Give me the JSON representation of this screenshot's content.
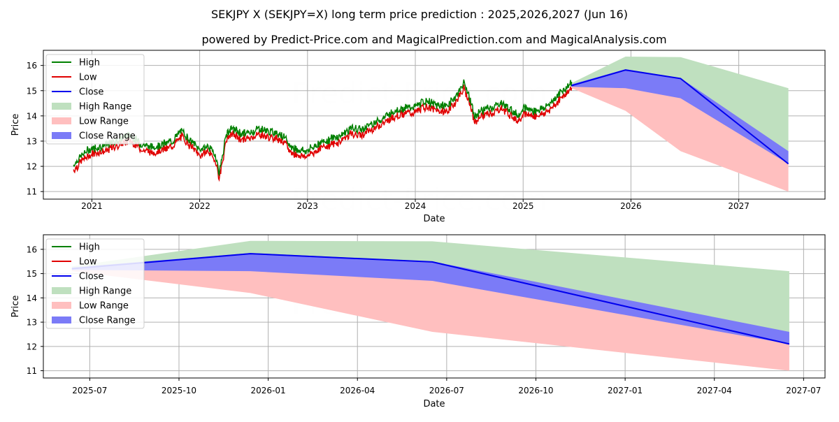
{
  "header": {
    "title": "SEKJPY X (SEKJPY=X) long term price prediction : 2025,2026,2027 (Jun 16)",
    "subtitle": "powered by Predict-Price.com and MagicalPrediction.com and MagicalAnalysis.com"
  },
  "watermark": "Predict-Price.com",
  "colors": {
    "high": "#008000",
    "low": "#e00000",
    "close": "#0000ee",
    "high_range": "#bfe0bf",
    "low_range": "#ffbfbf",
    "close_range": "#7b7bf7"
  },
  "legend": {
    "entries": [
      {
        "label": "High",
        "kind": "line",
        "color": "#008000"
      },
      {
        "label": "Low",
        "kind": "line",
        "color": "#e00000"
      },
      {
        "label": "Close",
        "kind": "line",
        "color": "#0000ee"
      },
      {
        "label": "High Range",
        "kind": "patch",
        "color": "#bfe0bf"
      },
      {
        "label": "Low Range",
        "kind": "patch",
        "color": "#ffbfbf"
      },
      {
        "label": "Close Range",
        "kind": "patch",
        "color": "#7b7bf7"
      }
    ]
  },
  "chart_data": [
    {
      "type": "line",
      "title": "",
      "xlabel": "Date",
      "ylabel": "Price",
      "xlim": [
        2020.55,
        2027.8
      ],
      "ylim": [
        10.7,
        16.6
      ],
      "legend_position": "top-left",
      "grid": true,
      "x_ticks": [
        {
          "value": 2021,
          "label": "2021"
        },
        {
          "value": 2022,
          "label": "2022"
        },
        {
          "value": 2023,
          "label": "2023"
        },
        {
          "value": 2024,
          "label": "2024"
        },
        {
          "value": 2025,
          "label": "2025"
        },
        {
          "value": 2026,
          "label": "2026"
        },
        {
          "value": 2027,
          "label": "2027"
        }
      ],
      "y_ticks": [
        11,
        12,
        13,
        14,
        15,
        16
      ],
      "history": {
        "x": [
          2020.83,
          2020.9,
          2020.97,
          2021.05,
          2021.15,
          2021.25,
          2021.35,
          2021.45,
          2021.55,
          2021.65,
          2021.75,
          2021.83,
          2021.92,
          2022.0,
          2022.08,
          2022.15,
          2022.18,
          2022.25,
          2022.3,
          2022.38,
          2022.46,
          2022.55,
          2022.65,
          2022.75,
          2022.85,
          2022.92,
          2023.0,
          2023.1,
          2023.2,
          2023.3,
          2023.4,
          2023.5,
          2023.6,
          2023.7,
          2023.8,
          2023.9,
          2024.0,
          2024.1,
          2024.2,
          2024.3,
          2024.38,
          2024.45,
          2024.5,
          2024.55,
          2024.6,
          2024.7,
          2024.8,
          2024.9,
          2024.95,
          2025.0,
          2025.1,
          2025.2,
          2025.3,
          2025.38,
          2025.45
        ],
        "close": [
          11.95,
          12.3,
          12.55,
          12.65,
          12.75,
          12.95,
          13.15,
          12.8,
          12.65,
          12.75,
          12.9,
          13.3,
          12.9,
          12.55,
          12.7,
          12.3,
          11.6,
          13.2,
          13.4,
          13.2,
          13.2,
          13.4,
          13.25,
          13.2,
          12.65,
          12.55,
          12.5,
          12.8,
          12.95,
          13.1,
          13.4,
          13.35,
          13.6,
          13.8,
          14.1,
          14.2,
          14.25,
          14.5,
          14.3,
          14.3,
          14.7,
          15.2,
          14.7,
          13.8,
          14.1,
          14.2,
          14.4,
          14.1,
          13.9,
          14.2,
          14.1,
          14.2,
          14.6,
          14.95,
          15.2
        ]
      },
      "forecast": {
        "x": [
          2025.45,
          2025.95,
          2026.46,
          2027.46
        ],
        "close": [
          15.2,
          15.82,
          15.48,
          12.1
        ],
        "high_range": [
          15.3,
          16.35,
          16.33,
          15.1
        ],
        "low_range": [
          15.1,
          14.2,
          12.6,
          11.0
        ],
        "close_range_upper": [
          15.25,
          15.85,
          15.5,
          12.6
        ],
        "close_range_lower": [
          15.15,
          15.1,
          14.7,
          12.1
        ]
      }
    },
    {
      "type": "line",
      "title": "",
      "xlabel": "Date",
      "ylabel": "Price",
      "xlim": [
        2025.37,
        2027.56
      ],
      "ylim": [
        10.7,
        16.6
      ],
      "legend_position": "top-left",
      "grid": true,
      "x_ticks": [
        {
          "value": 2025.5,
          "label": "2025-07"
        },
        {
          "value": 2025.75,
          "label": "2025-10"
        },
        {
          "value": 2026.0,
          "label": "2026-01"
        },
        {
          "value": 2026.25,
          "label": "2026-04"
        },
        {
          "value": 2026.5,
          "label": "2026-07"
        },
        {
          "value": 2026.75,
          "label": "2026-10"
        },
        {
          "value": 2027.0,
          "label": "2027-01"
        },
        {
          "value": 2027.25,
          "label": "2027-04"
        },
        {
          "value": 2027.5,
          "label": "2027-07"
        }
      ],
      "y_ticks": [
        11,
        12,
        13,
        14,
        15,
        16
      ],
      "forecast": {
        "x": [
          2025.45,
          2025.95,
          2026.46,
          2027.46
        ],
        "close": [
          15.2,
          15.82,
          15.48,
          12.1
        ],
        "high_range": [
          15.3,
          16.35,
          16.33,
          15.1
        ],
        "low_range": [
          15.1,
          14.2,
          12.6,
          11.0
        ],
        "close_range_upper": [
          15.25,
          15.85,
          15.5,
          12.6
        ],
        "close_range_lower": [
          15.15,
          15.1,
          14.7,
          12.1
        ]
      }
    }
  ]
}
